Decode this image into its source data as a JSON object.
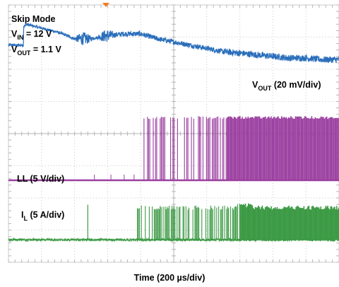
{
  "chart_data": {
    "type": "line",
    "subtitle_lines": [
      {
        "main": "Skip Mode",
        "sub": "",
        "rest": ""
      },
      {
        "main": "V",
        "sub": "IN",
        "rest": " = 12 V"
      },
      {
        "main": "V",
        "sub": "OUT",
        "rest": " = 1.1 V"
      }
    ],
    "xlabel": {
      "text": "Time (200 µs/div)"
    },
    "grid": "dotted 10 x 8 divisions",
    "trigger_marker_color": "#f47c20",
    "series": [
      {
        "key": "vout",
        "label_main": "V",
        "label_sub": "OUT",
        "label_rest": " (20 mV/div)",
        "color": "#2a6ebb",
        "profile_x_div": [
          0,
          0.45,
          0.46,
          0.52,
          0.53,
          1.0,
          1.5,
          2.0,
          2.5,
          3.0,
          3.5,
          4.0,
          4.5,
          5.0,
          5.5,
          6.0,
          6.5,
          7.0,
          7.5,
          8.0,
          8.5,
          9.0,
          9.5,
          10.0
        ],
        "profile_y_div": [
          2.75,
          2.75,
          3.35,
          3.35,
          3.4,
          3.28,
          3.15,
          2.95,
          2.95,
          3.05,
          3.1,
          3.1,
          2.95,
          2.85,
          2.75,
          2.65,
          2.55,
          2.5,
          2.45,
          2.4,
          2.35,
          2.35,
          2.3,
          2.3
        ],
        "baseline_before_step_div": 2.75
      },
      {
        "key": "ll",
        "label_main": "LL (5 V/div)",
        "label_sub": "",
        "label_rest": "",
        "color": "#9b3fa0",
        "low_level_div": -1.45,
        "high_level_div": 0.5,
        "switching_starts_div": 4.1,
        "dense_switching_from_div": 6.6
      },
      {
        "key": "il",
        "label_main": "I",
        "label_sub": "L",
        "label_rest": " (5 A/div)",
        "color": "#3d9a45",
        "zero_level_div": -3.3,
        "peak_level_div": -2.3,
        "switching_starts_div": 3.9,
        "continuous_from_div": 7.0
      }
    ]
  }
}
